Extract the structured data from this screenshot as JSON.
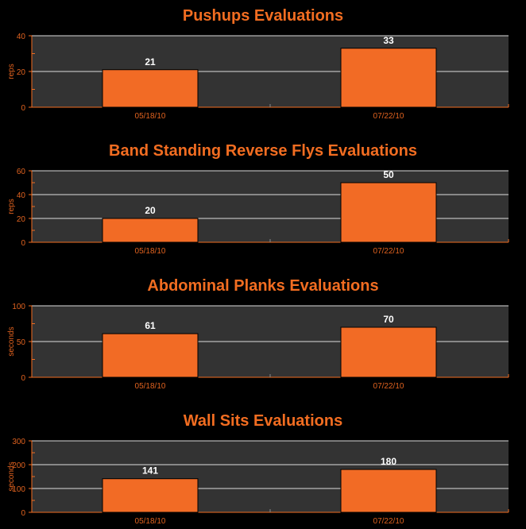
{
  "colors": {
    "background": "#000000",
    "plot_bg": "#333333",
    "bar": "#f26b25",
    "accent": "#f26d21",
    "grid": "#dddddd",
    "value_label": "#ffffff"
  },
  "chart_data": [
    {
      "type": "bar",
      "title": "Pushups Evaluations",
      "ylabel": "reps",
      "categories": [
        "05/18/10",
        "07/22/10"
      ],
      "values": [
        21,
        33
      ],
      "ylim": [
        0,
        40
      ],
      "yticks": [
        0,
        20,
        40
      ],
      "grid": true
    },
    {
      "type": "bar",
      "title": "Band Standing Reverse Flys Evaluations",
      "ylabel": "reps",
      "categories": [
        "05/18/10",
        "07/22/10"
      ],
      "values": [
        20,
        50
      ],
      "ylim": [
        0,
        60
      ],
      "yticks": [
        0,
        20,
        40,
        60
      ],
      "grid": true
    },
    {
      "type": "bar",
      "title": "Abdominal Planks Evaluations",
      "ylabel": "seconds",
      "categories": [
        "05/18/10",
        "07/22/10"
      ],
      "values": [
        61,
        70
      ],
      "ylim": [
        0,
        100
      ],
      "yticks": [
        0,
        50,
        100
      ],
      "grid": true
    },
    {
      "type": "bar",
      "title": "Wall Sits Evaluations",
      "ylabel": "seconds",
      "categories": [
        "05/18/10",
        "07/22/10"
      ],
      "values": [
        141,
        180
      ],
      "ylim": [
        0,
        300
      ],
      "yticks": [
        0,
        100,
        200,
        300
      ],
      "grid": true
    }
  ]
}
